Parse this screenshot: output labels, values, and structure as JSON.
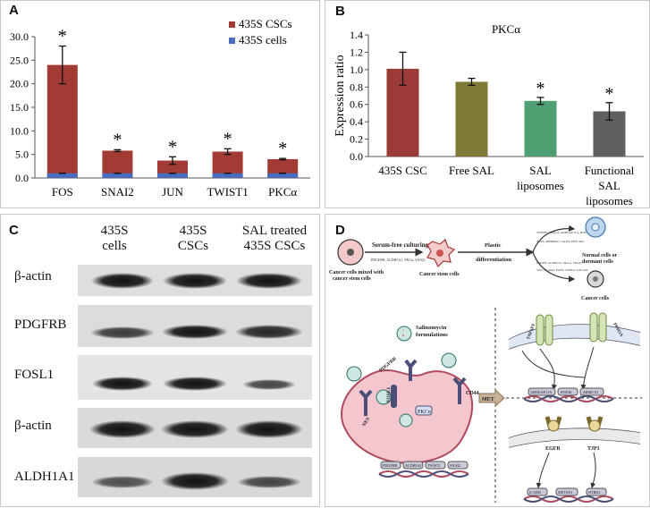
{
  "panels": {
    "a": {
      "label": "A",
      "chart_data": {
        "type": "bar",
        "stacked": true,
        "categories": [
          "FOS",
          "SNAI2",
          "JUN",
          "TWIST1",
          "PKCα"
        ],
        "series": [
          {
            "name": "435S CSCs",
            "values": [
              24.0,
              5.8,
              3.7,
              5.6,
              4.0
            ],
            "errors": [
              4.0,
              0.2,
              0.8,
              0.6,
              0.15
            ],
            "color": "#a33b35"
          },
          {
            "name": "435S cells",
            "values": [
              1.0,
              1.0,
              1.0,
              1.0,
              1.0
            ],
            "color": "#4a6cc0"
          }
        ],
        "significance": [
          "*",
          "*",
          "*",
          "*",
          "*"
        ],
        "ylim": [
          0,
          30
        ],
        "yticks": [
          "0.0",
          "5.0",
          "10.0",
          "15.0",
          "20.0",
          "25.0",
          "30.0"
        ],
        "legend_position": "top-right"
      }
    },
    "b": {
      "label": "B",
      "chart_data": {
        "type": "bar",
        "title": "PKCα",
        "ylabel": "Expression ratio",
        "categories": [
          "435S CSC",
          "Free SAL",
          "SAL liposomes",
          "Functional SAL liposomes"
        ],
        "category_lines": [
          [
            "435S CSC"
          ],
          [
            "Free SAL"
          ],
          [
            "SAL",
            "liposomes"
          ],
          [
            "Functional",
            "SAL",
            "liposomes"
          ]
        ],
        "values": [
          1.01,
          0.86,
          0.64,
          0.52
        ],
        "errors": [
          0.19,
          0.04,
          0.04,
          0.1
        ],
        "colors": [
          "#9b3a37",
          "#7f7a35",
          "#4e9f72",
          "#606060"
        ],
        "significance": [
          "",
          "",
          "*",
          "*"
        ],
        "ylim": [
          0,
          1.4
        ],
        "yticks": [
          "0.0",
          "0.2",
          "0.4",
          "0.6",
          "0.8",
          "1.0",
          "1.2",
          "1.4"
        ]
      }
    },
    "c": {
      "label": "C",
      "columns": [
        [
          "435S",
          "cells"
        ],
        [
          "435S",
          "CSCs"
        ],
        [
          "SAL treated",
          "435S CSCs"
        ]
      ],
      "rows": [
        "β-actin",
        "PDGFRB",
        "FOSL1",
        "β-actin",
        "ALDH1A1"
      ]
    },
    "d": {
      "label": "D",
      "top": {
        "step1": "Serum-free culturing",
        "step2": [
          "Plastic",
          "differentiation"
        ],
        "mixed": [
          "Cancer cells mixed with",
          "cancer stem cells"
        ],
        "marker_list": "PDGFRB, ALDH1A1, PKCα, SNAI2",
        "csc": "Cancer stem cells",
        "genes": [
          "TNFSF9, PPM1A, ARHGAP11A, RNF46",
          "TGFA, RHBDD2, CALB2, ERF, SRC",
          "PDGFB, ALDH1A1, PKCα, SNAI2",
          "TJP1, ICAM3, EGFR, NTRK2, EPCAM"
        ],
        "normal": [
          "Normal cells or",
          "dormant cells"
        ],
        "cancer": "Cancer cells"
      },
      "bottom": {
        "salinomycin": [
          "Salinomycin",
          "formulations"
        ],
        "pdgfrb": "PDGFRB",
        "fosl1": "FOSL1",
        "cd44": "CD44",
        "nes": "NES",
        "pkca": "PKCα",
        "dna_genes": [
          "PDGFRB",
          "ALDH1A1",
          "TWIST1",
          "SNAI2"
        ],
        "met": "MET",
        "tnfsf9": "TNFSF9",
        "ppm1a": "PPM1A",
        "right_top_genes": [
          "ARHGAP11A",
          "RNF46",
          "ARMCX1"
        ],
        "egfr": "EGFR",
        "tjp1": "TJP1",
        "right_bottom_genes": [
          "ICAM3",
          "METAP2",
          "NTRK2"
        ]
      }
    }
  }
}
